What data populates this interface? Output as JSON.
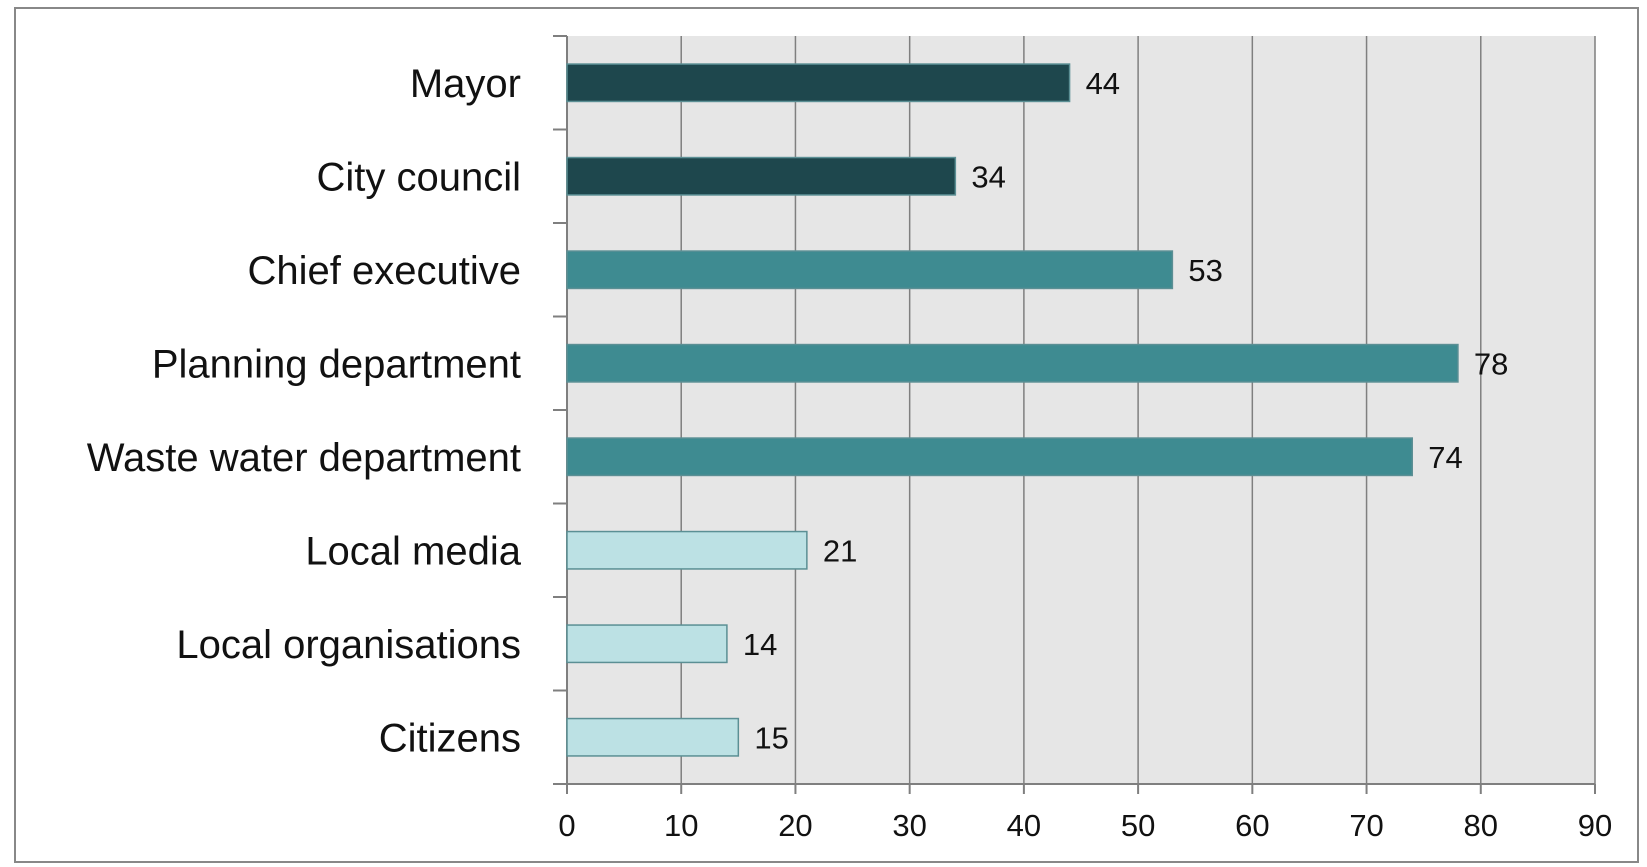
{
  "chart_data": {
    "type": "bar",
    "orientation": "horizontal",
    "categories": [
      "Mayor",
      "City council",
      "Chief executive",
      "Planning department",
      "Waste water department",
      "Local media",
      "Local organisations",
      "Citizens"
    ],
    "values": [
      44,
      34,
      53,
      78,
      74,
      21,
      14,
      15
    ],
    "bar_colors": [
      "#1e474d",
      "#1e474d",
      "#3e8b91",
      "#3e8b91",
      "#3e8b91",
      "#bce1e4",
      "#bce1e4",
      "#bce1e4"
    ],
    "title": "",
    "xlabel": "",
    "ylabel": "",
    "xlim": [
      0,
      90
    ],
    "xticks": [
      0,
      10,
      20,
      30,
      40,
      50,
      60,
      70,
      80,
      90
    ],
    "grid": "vertical",
    "plot_background": "#e6e6e6",
    "gridline_color": "#7f7f7f",
    "data_labels": true,
    "legend": "none"
  }
}
